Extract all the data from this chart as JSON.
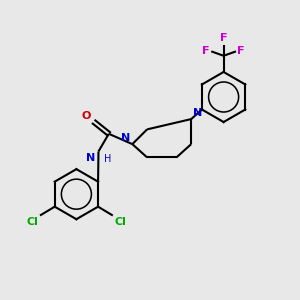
{
  "bg_color": "#e8e8e8",
  "bond_color": "#000000",
  "N_color": "#0000cc",
  "O_color": "#cc0000",
  "Cl_color": "#00aa00",
  "F_color": "#cc00cc",
  "line_width": 1.5,
  "figsize": [
    3.0,
    3.0
  ],
  "dpi": 100,
  "xlim": [
    0,
    10
  ],
  "ylim": [
    0,
    10
  ]
}
